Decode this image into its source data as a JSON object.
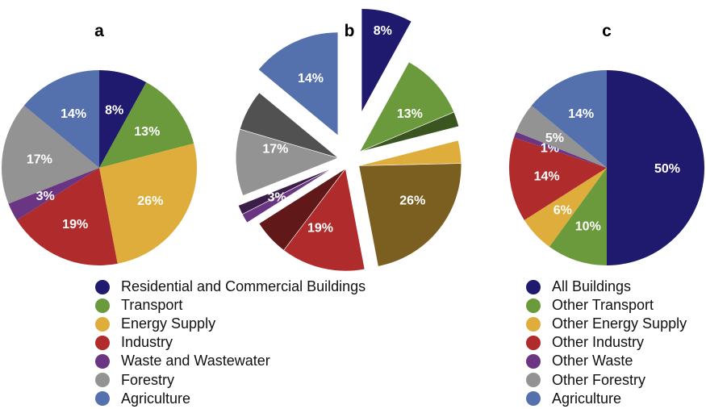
{
  "chart_data": [
    {
      "type": "pie",
      "panel": "a",
      "slices": [
        {
          "name": "Residential and Commercial Buildings",
          "value": 8,
          "label": "8%",
          "color": "#1f1a6e"
        },
        {
          "name": "Transport",
          "value": 13,
          "label": "13%",
          "color": "#6a9a3b"
        },
        {
          "name": "Energy Supply",
          "value": 26,
          "label": "26%",
          "color": "#dfad3b"
        },
        {
          "name": "Industry",
          "value": 19,
          "label": "19%",
          "color": "#b02c2c"
        },
        {
          "name": "Waste and Wastewater",
          "value": 3,
          "label": "3%",
          "color": "#6a3683"
        },
        {
          "name": "Forestry",
          "value": 17,
          "label": "17%",
          "color": "#939393"
        },
        {
          "name": "Agriculture",
          "value": 14,
          "label": "14%",
          "color": "#5471ae"
        }
      ]
    },
    {
      "type": "pie",
      "panel": "b",
      "exploded": true,
      "slices": [
        {
          "name": "Residential and Commercial Buildings",
          "value": 8,
          "label": "8%",
          "color": "#1f1a6e"
        },
        {
          "name": "Transport",
          "value": 13,
          "label": "13%",
          "color": "#6a9a3b"
        },
        {
          "name": "Energy Supply",
          "value": 26,
          "label": "26%",
          "color": "#dfad3b"
        },
        {
          "name": "Industry",
          "value": 19,
          "label": "19%",
          "color": "#b02c2c"
        },
        {
          "name": "Waste and Wastewater",
          "value": 3,
          "label": "3%",
          "color": "#6a3683"
        },
        {
          "name": "Forestry",
          "value": 17,
          "label": "17%",
          "color": "#939393"
        },
        {
          "name": "Agriculture",
          "value": 14,
          "label": "14%",
          "color": "#5471ae"
        }
      ]
    },
    {
      "type": "pie",
      "panel": "c",
      "slices": [
        {
          "name": "All Buildings",
          "value": 50,
          "label": "50%",
          "color": "#1f1a6e"
        },
        {
          "name": "Other Transport",
          "value": 10,
          "label": "10%",
          "color": "#6a9a3b"
        },
        {
          "name": "Other Energy Supply",
          "value": 6,
          "label": "6%",
          "color": "#dfad3b"
        },
        {
          "name": "Other Industry",
          "value": 14,
          "label": "14%",
          "color": "#b02c2c"
        },
        {
          "name": "Other Waste",
          "value": 1,
          "label": "1%",
          "color": "#6a3683"
        },
        {
          "name": "Other Forestry",
          "value": 5,
          "label": "5%",
          "color": "#939393"
        },
        {
          "name": "Agriculture",
          "value": 14,
          "label": "14%",
          "color": "#5471ae"
        }
      ]
    }
  ],
  "panel_letters": [
    "a",
    "b",
    "c"
  ],
  "legend_ab": [
    {
      "label": "Residential and Commercial Buildings",
      "color": "#1f1a6e"
    },
    {
      "label": "Transport",
      "color": "#6a9a3b"
    },
    {
      "label": "Energy Supply",
      "color": "#dfad3b"
    },
    {
      "label": "Industry",
      "color": "#b02c2c"
    },
    {
      "label": "Waste and Wastewater",
      "color": "#6a3683"
    },
    {
      "label": "Forestry",
      "color": "#939393"
    },
    {
      "label": "Agriculture",
      "color": "#5471ae"
    }
  ],
  "legend_c": [
    {
      "label": "All Buildings",
      "color": "#1f1a6e"
    },
    {
      "label": "Other Transport",
      "color": "#6a9a3b"
    },
    {
      "label": "Other Energy Supply",
      "color": "#dfad3b"
    },
    {
      "label": "Other Industry",
      "color": "#b02c2c"
    },
    {
      "label": "Other Waste",
      "color": "#6a3683"
    },
    {
      "label": "Other Forestry",
      "color": "#939393"
    },
    {
      "label": "Agriculture",
      "color": "#5471ae"
    }
  ]
}
